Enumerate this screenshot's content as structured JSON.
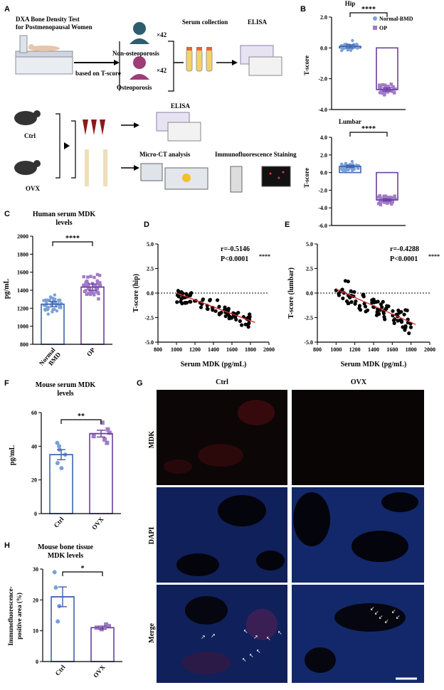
{
  "colors": {
    "blue": "#3b63ad",
    "lightblue": "#7aa0d8",
    "purple": "#6b3fa0",
    "lightpurple": "#a07bc8",
    "red": "#d9262a",
    "dark": "#000000"
  },
  "panels": {
    "A": {
      "letter": "A",
      "dxa_title_line1": "DXA Bone Density Test",
      "dxa_title_line2": "for Postmenopausal Women",
      "non_op": "Non-osteoporosis",
      "op": "Osteoporosis",
      "count1": "×42",
      "count2": "×42",
      "arrow_label": "based on T-score",
      "serum": "Serum collection",
      "elisa1": "ELISA",
      "ctrl": "Ctrl",
      "ovx": "OVX",
      "elisa2": "ELISA",
      "microct": "Micro-CT analysis",
      "if_staining": "Immunofluorescence Staining"
    },
    "B": {
      "letter": "B",
      "legend": [
        "Normal-BMD",
        "OP"
      ]
    },
    "C": {
      "letter": "C"
    },
    "D": {
      "letter": "D"
    },
    "E": {
      "letter": "E"
    },
    "F": {
      "letter": "F"
    },
    "G": {
      "letter": "G",
      "col1": "Ctrl",
      "col2": "OVX",
      "rows": [
        "MDK",
        "DAPI",
        "Merge"
      ]
    },
    "H": {
      "letter": "H"
    }
  },
  "chart_data": [
    {
      "id": "B-hip",
      "type": "bar",
      "title": "Hip",
      "ylabel": "T-score",
      "ylim": [
        -4,
        2
      ],
      "yticks": [
        "2.0",
        "0.0",
        "-2.0",
        "-4.0"
      ],
      "categories": [
        "Normal-BMD",
        "OP"
      ],
      "values": [
        0.1,
        -2.7
      ],
      "significance": "****"
    },
    {
      "id": "B-lumbar",
      "type": "bar",
      "title": "Lumbar",
      "ylabel": "T-score",
      "ylim": [
        -6,
        4
      ],
      "yticks": [
        "4.0",
        "2.0",
        "0.0",
        "-2.0",
        "-4.0",
        "-6.0"
      ],
      "categories": [
        "Normal-BMD",
        "OP"
      ],
      "values": [
        0.7,
        -3.1
      ],
      "significance": "****"
    },
    {
      "id": "C",
      "type": "bar",
      "title_line1": "Human serum MDK",
      "title_line2": "levels",
      "ylabel": "pg/mL",
      "ylim": [
        800,
        2000
      ],
      "yticks": [
        "2000",
        "1800",
        "1600",
        "1400",
        "1200",
        "1000",
        "800"
      ],
      "categories": [
        "Normal BMD",
        "OP"
      ],
      "category_lines": [
        [
          "Normal",
          "BMD"
        ],
        [
          "OP"
        ]
      ],
      "values": [
        1245,
        1435
      ],
      "sem": [
        30,
        35
      ],
      "significance": "****"
    },
    {
      "id": "D",
      "type": "scatter",
      "ylabel": "T-score (hip)",
      "xlabel": "Serum MDK (pg/mL)",
      "xlim": [
        800,
        2000
      ],
      "ylim": [
        -5,
        5
      ],
      "xticks": [
        "800",
        "1000",
        "1200",
        "1400",
        "1600",
        "1800",
        "2000"
      ],
      "yticks": [
        "5.0",
        "2.5",
        "0.0",
        "-2.5",
        "-5.0"
      ],
      "r_text": "r=-0.5146",
      "p_text": "P<0.0001",
      "p_stars": "****",
      "fit": [
        [
          1000,
          0.0
        ],
        [
          1850,
          -3.0
        ]
      ]
    },
    {
      "id": "E",
      "type": "scatter",
      "ylabel": "T-score (lumbar)",
      "xlabel": "Serum MDK (pg/mL)",
      "xlim": [
        800,
        2000
      ],
      "ylim": [
        -5,
        5
      ],
      "xticks": [
        "800",
        "1000",
        "1200",
        "1400",
        "1600",
        "1800",
        "2000"
      ],
      "yticks": [
        "5.0",
        "2.5",
        "0.0",
        "-2.5",
        "-5.0"
      ],
      "r_text": "r=-0.4288",
      "p_text": "P<0.0001",
      "p_stars": "****",
      "fit": [
        [
          1000,
          0.4
        ],
        [
          1850,
          -3.2
        ]
      ]
    },
    {
      "id": "F",
      "type": "bar",
      "title_line1": "Mouse serum MDK",
      "title_line2": "levels",
      "ylabel": "pg/mL",
      "ylim": [
        0,
        60
      ],
      "yticks": [
        "60",
        "40",
        "20",
        "0"
      ],
      "categories": [
        "Ctrl",
        "OVX"
      ],
      "values": [
        35,
        47.5
      ],
      "sem": [
        3,
        2
      ],
      "points": [
        [
          30,
          27,
          35,
          38,
          40,
          42
        ],
        [
          42,
          44,
          46,
          48,
          50,
          54
        ]
      ],
      "significance": "**"
    },
    {
      "id": "H",
      "type": "bar",
      "title_line1": "Mouse bone tissue",
      "title_line2": "MDK levels",
      "ylabel_line1": "Immunofluorescence-",
      "ylabel_line2": "positive area (%)",
      "ylim": [
        0,
        30
      ],
      "yticks": [
        "30",
        "20",
        "10",
        "0"
      ],
      "categories": [
        "Ctrl",
        "OVX"
      ],
      "values": [
        21,
        11
      ],
      "sem": [
        3.2,
        0.5
      ],
      "points": [
        [
          13,
          18,
          24,
          29
        ],
        [
          10.5,
          11,
          11.5,
          12
        ]
      ],
      "significance": "*"
    }
  ]
}
